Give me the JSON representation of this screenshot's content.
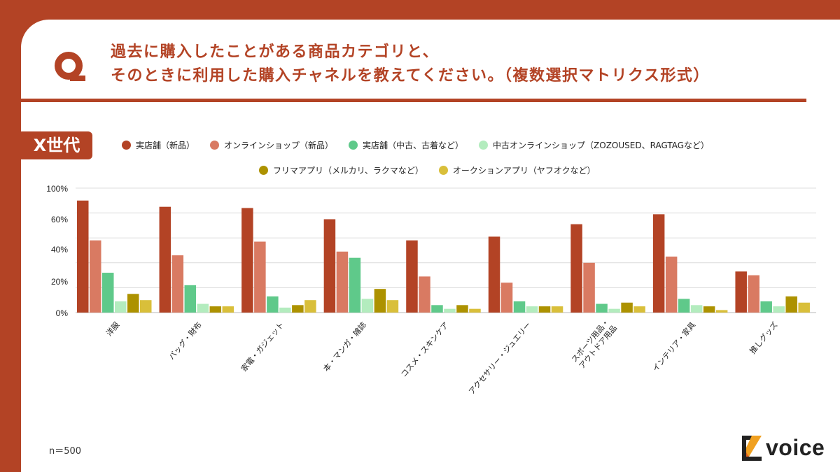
{
  "question": {
    "icon": "q-letter-icon",
    "line1": "過去に購入したことがある商品カテゴリと、",
    "line2": "そのときに利用した購入チャネルを教えてください。（複数選択マトリクス形式）"
  },
  "generation_badge": "X世代",
  "footer": {
    "sample_size": "n＝500"
  },
  "logo": {
    "text": "voice",
    "icon": "z-logo-icon"
  },
  "colors": {
    "brand": "#b34325",
    "series": [
      "#b34325",
      "#d97a62",
      "#5fc98a",
      "#b3ecbe",
      "#ad9200",
      "#d9bf3a"
    ]
  },
  "chart_data": {
    "type": "bar",
    "title": "",
    "xlabel": "",
    "ylabel": "",
    "ylim": [
      0,
      100
    ],
    "grid": true,
    "legend_position": "top",
    "y_tick_labels": [
      "100%",
      "60%",
      "40%",
      "20%",
      "0%"
    ],
    "categories": [
      "洋服",
      "バッグ・財布",
      "家電・ガジェット",
      "本・マンガ・雑誌",
      "コスメ・スキンケア",
      "アクセサリー・ジュエリー",
      "スポーツ用品・\nアウトドア用品",
      "インテリア・家具",
      "推しグッズ"
    ],
    "series": [
      {
        "name": "実店舗（新品）",
        "values": [
          90,
          85,
          84,
          75,
          58,
          61,
          71,
          79,
          33
        ]
      },
      {
        "name": "オンラインショップ（新品）",
        "values": [
          58,
          46,
          57,
          49,
          29,
          24,
          40,
          45,
          30
        ]
      },
      {
        "name": "実店舗（中古、古着など）",
        "values": [
          32,
          22,
          13,
          44,
          6,
          9,
          7,
          11,
          9
        ]
      },
      {
        "name": "中古オンラインショップ（ZOZOUSED、RAGTAGなど）",
        "values": [
          9,
          7,
          4,
          11,
          3,
          5,
          3,
          6,
          5
        ]
      },
      {
        "name": "フリマアプリ（メルカリ、ラクマなど）",
        "values": [
          15,
          5,
          6,
          19,
          6,
          5,
          8,
          5,
          13
        ]
      },
      {
        "name": "オークションアプリ（ヤフオクなど）",
        "values": [
          10,
          5,
          10,
          10,
          3,
          5,
          5,
          2,
          8
        ]
      }
    ]
  }
}
